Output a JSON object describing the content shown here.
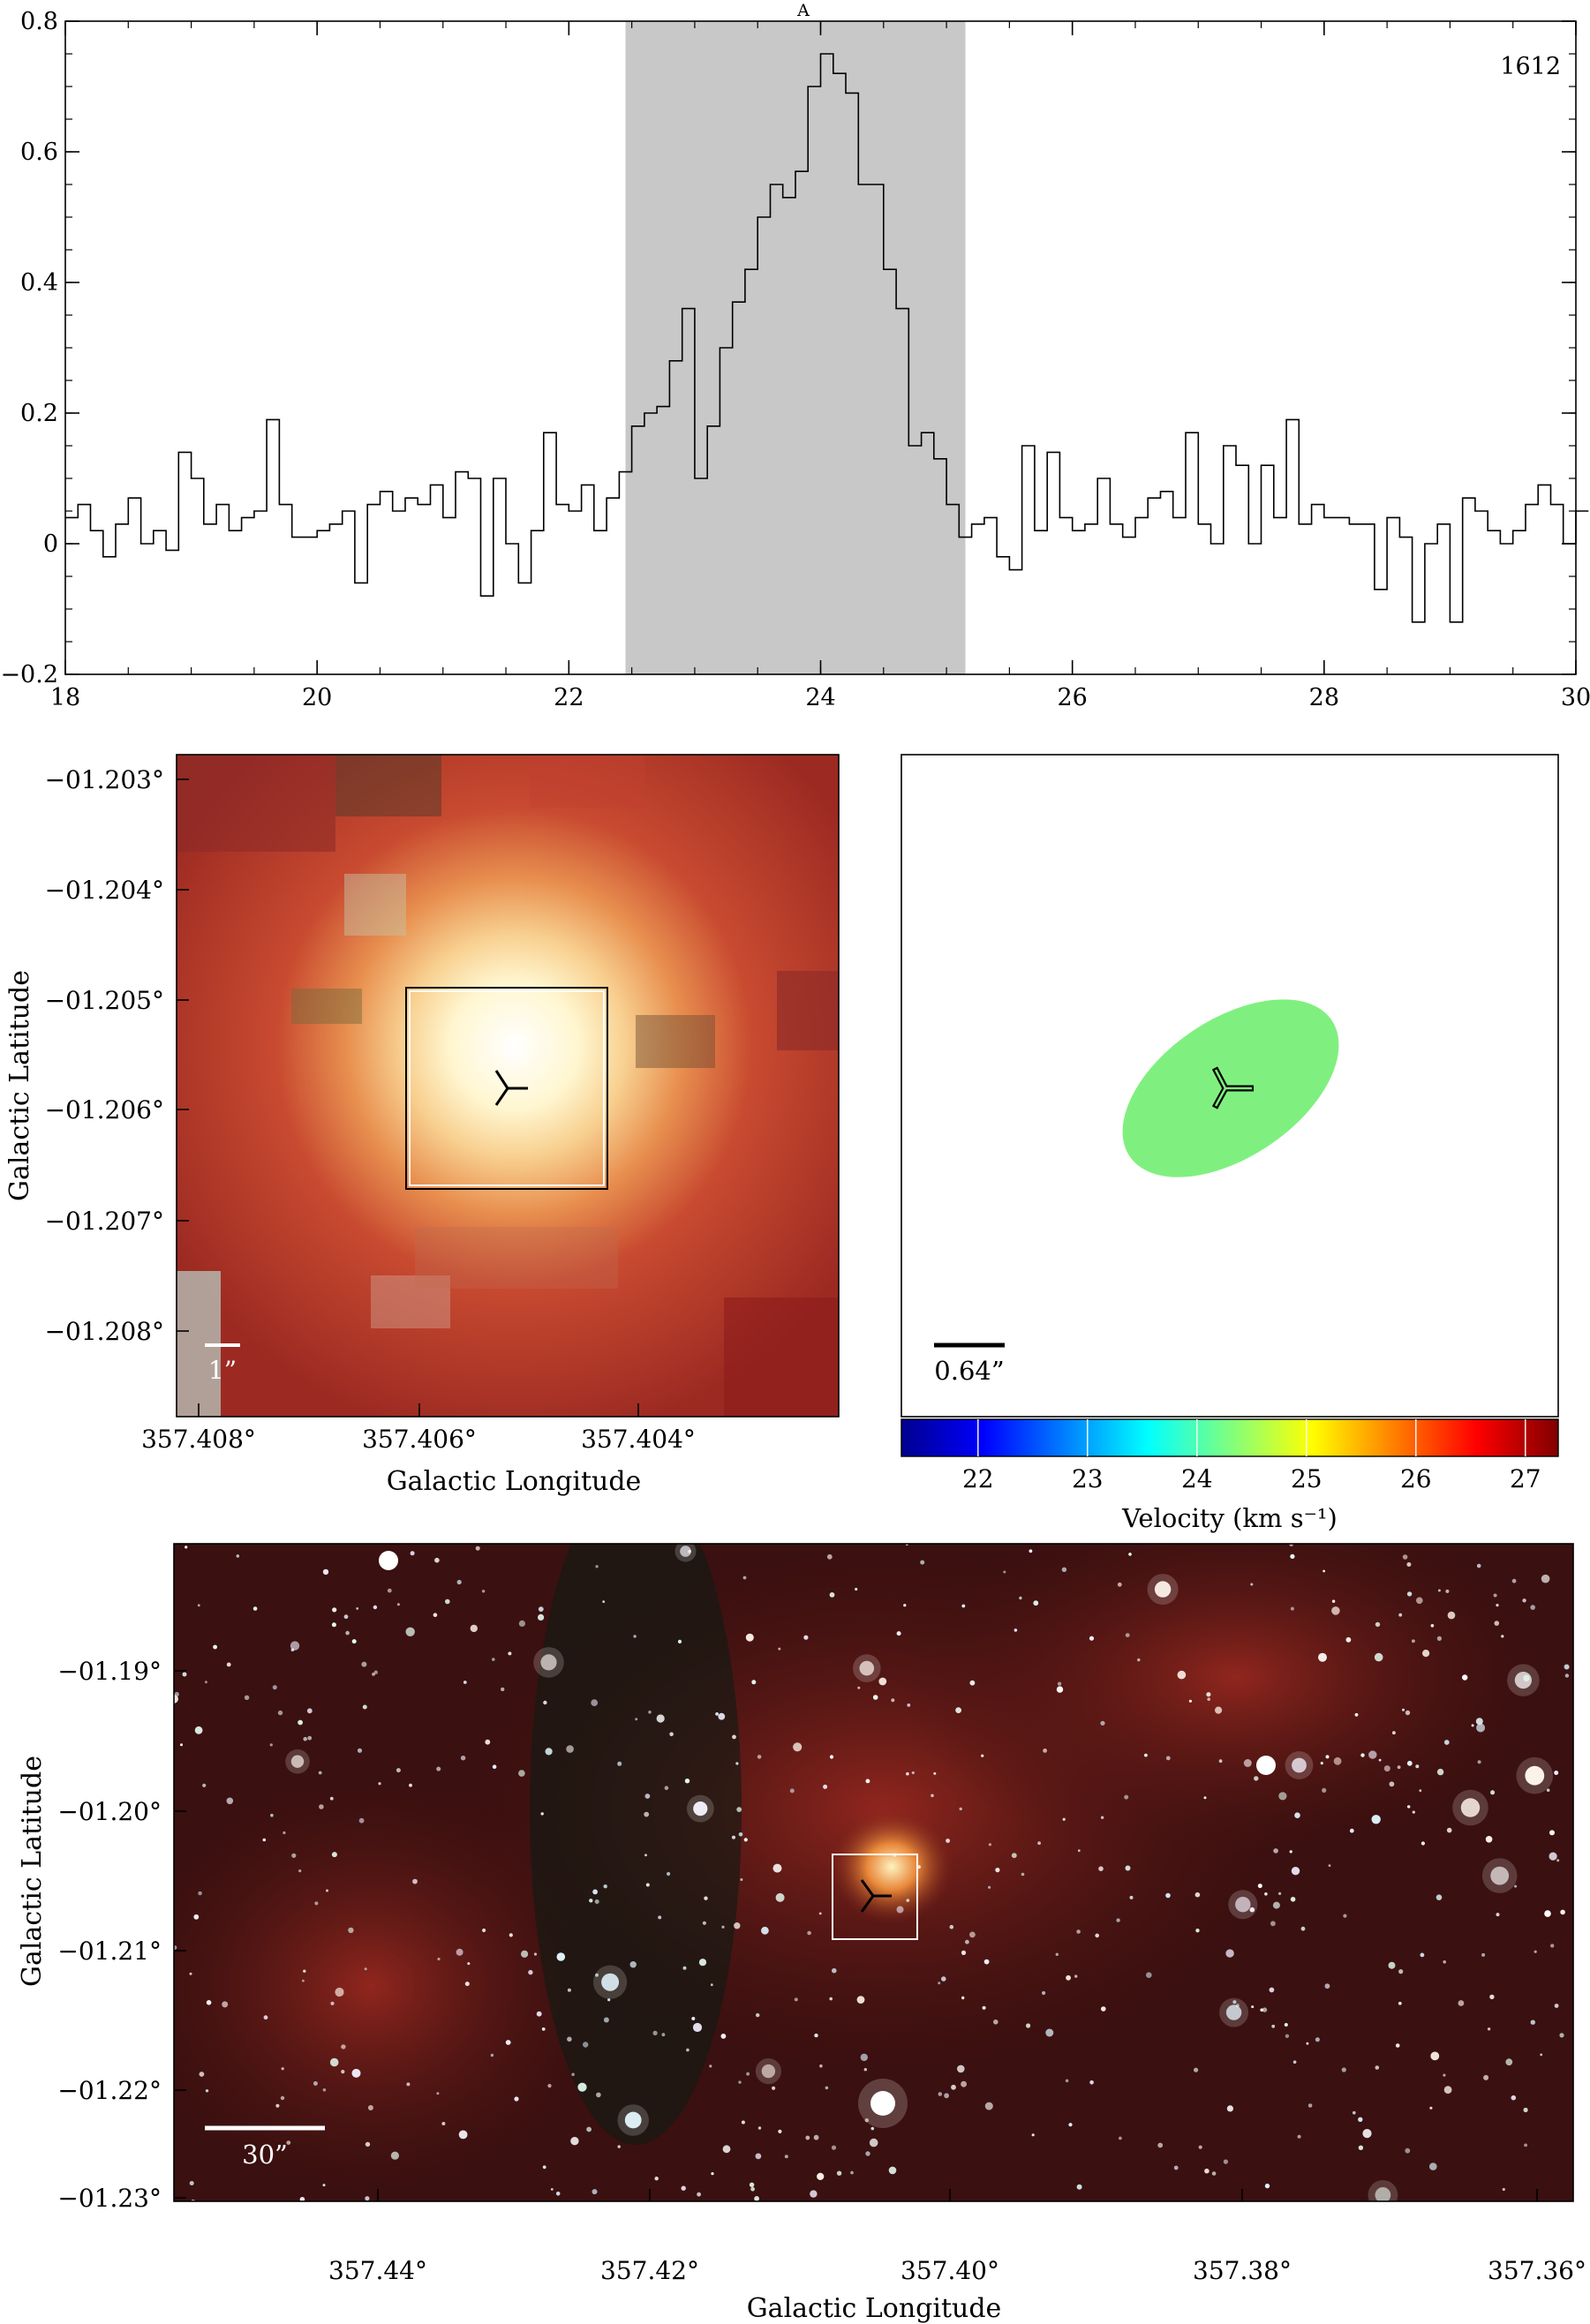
{
  "chart_data": [
    {
      "type": "line",
      "step": true,
      "title": "",
      "annotation_top": "A",
      "annotation_right": "1612",
      "xlabel": "",
      "ylabel": "",
      "xlim": [
        18,
        30
      ],
      "ylim": [
        -0.2,
        0.8
      ],
      "xticks": [
        "18",
        "20",
        "22",
        "24",
        "26",
        "28",
        "30"
      ],
      "yticks": [
        "−0.2",
        "0",
        "0.2",
        "0.4",
        "0.6",
        "0.8"
      ],
      "shaded_range": [
        22.45,
        25.15
      ],
      "shade_color": "#c8c8c8",
      "x0": 18.0,
      "dx": 0.1,
      "values": [
        0.04,
        0.06,
        0.02,
        -0.02,
        0.03,
        0.07,
        0.0,
        0.02,
        -0.01,
        0.14,
        0.1,
        0.03,
        0.06,
        0.02,
        0.04,
        0.05,
        0.19,
        0.06,
        0.01,
        0.01,
        0.02,
        0.03,
        0.05,
        -0.06,
        0.06,
        0.08,
        0.05,
        0.07,
        0.06,
        0.09,
        0.04,
        0.11,
        0.1,
        -0.08,
        0.1,
        0.0,
        -0.06,
        0.02,
        0.17,
        0.06,
        0.05,
        0.09,
        0.02,
        0.07,
        0.11,
        0.18,
        0.2,
        0.21,
        0.28,
        0.36,
        0.1,
        0.18,
        0.3,
        0.37,
        0.42,
        0.5,
        0.55,
        0.53,
        0.57,
        0.7,
        0.75,
        0.72,
        0.69,
        0.55,
        0.55,
        0.42,
        0.36,
        0.15,
        0.17,
        0.13,
        0.06,
        0.01,
        0.03,
        0.04,
        -0.02,
        -0.04,
        0.15,
        0.02,
        0.14,
        0.04,
        0.02,
        0.03,
        0.1,
        0.03,
        0.01,
        0.04,
        0.07,
        0.08,
        0.04,
        0.17,
        0.03,
        0.0,
        0.15,
        0.12,
        0.0,
        0.12,
        0.04,
        0.19,
        0.03,
        0.06,
        0.04,
        0.04,
        0.03,
        0.03,
        -0.07,
        0.04,
        0.01,
        -0.12,
        0.0,
        0.03,
        -0.12,
        0.07,
        0.05,
        0.02,
        0.0,
        0.02,
        0.06,
        0.09,
        0.06,
        0.0,
        0.05
      ],
      "line_color": "#000000"
    },
    {
      "type": "heatmap",
      "title": "",
      "xlabel": "Galactic Longitude",
      "ylabel": "Galactic Latitude",
      "xticks": [
        "357.408°",
        "357.406°",
        "357.404°"
      ],
      "yticks": [
        "−01.203°",
        "−01.204°",
        "−01.205°",
        "−01.206°",
        "−01.207°",
        "−01.208°"
      ],
      "scalebar_label": "1”",
      "source_marker": "tripod"
    },
    {
      "type": "scatter",
      "title": "",
      "xlabel": "",
      "ylabel": "",
      "scalebar_label": "0.64”",
      "ellipse_color": "#7ff07f",
      "colorbar": {
        "label": "Velocity (km s⁻¹)",
        "ticks": [
          "22",
          "23",
          "24",
          "25",
          "26",
          "27"
        ],
        "range": [
          21.3,
          27.3
        ]
      }
    },
    {
      "type": "heatmap",
      "title": "",
      "xlabel": "Galactic Longitude",
      "ylabel": "Galactic Latitude",
      "xticks": [
        "357.44°",
        "357.42°",
        "357.40°",
        "357.38°",
        "357.36°"
      ],
      "yticks": [
        "−01.19°",
        "−01.20°",
        "−01.21°",
        "−01.22°",
        "−01.23°"
      ],
      "scalebar_label": "30”",
      "source_marker": "tripod"
    }
  ]
}
